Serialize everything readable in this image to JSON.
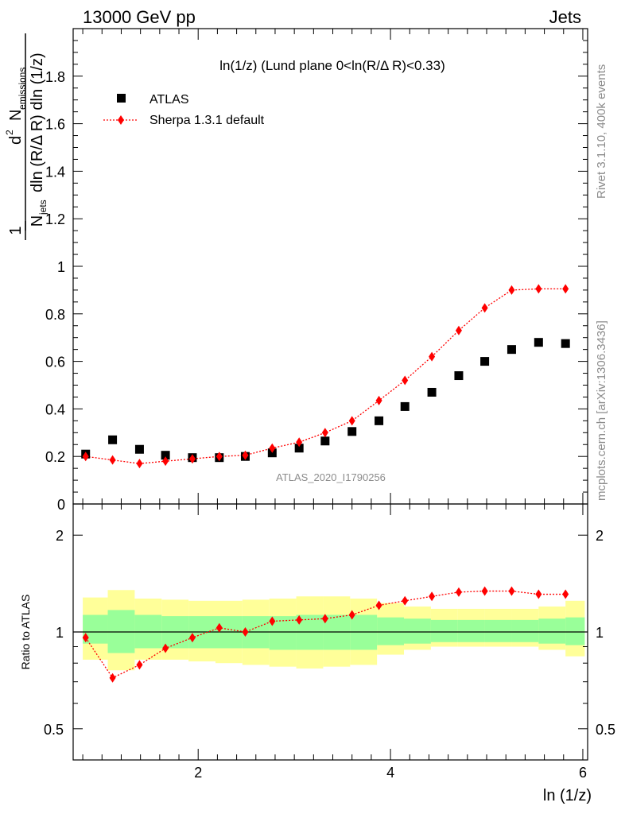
{
  "header": {
    "left": "13000 GeV pp",
    "right": "Jets"
  },
  "side_text": {
    "rivet": "Rivet 3.1.10,  400k events",
    "mcplots": "mcplots.cern.ch [arXiv:1306.3436]"
  },
  "chart_data": [
    {
      "type": "scatter",
      "title": "ln(1/z) (Lund plane 0<ln(R/Δ R)<0.33)",
      "watermark": "ATLAS_2020_I1790256",
      "ylabel": {
        "one": "1",
        "njets": "N",
        "njets_sub": "jets",
        "denom": "dln (R/Δ R) dln (1/z)",
        "d2": "d",
        "d2_sup": "2",
        "nemis": "N",
        "nemis_sub": "emissions"
      },
      "xlim": [
        0.7,
        6.05
      ],
      "ylim": [
        0,
        2.0
      ],
      "yticks": [
        {
          "v": 0,
          "label": "0"
        },
        {
          "v": 0.2,
          "label": "0.2"
        },
        {
          "v": 0.4,
          "label": "0.4"
        },
        {
          "v": 0.6,
          "label": "0.6"
        },
        {
          "v": 0.8,
          "label": "0.8"
        },
        {
          "v": 1.0,
          "label": "1"
        },
        {
          "v": 1.2,
          "label": "1.2"
        },
        {
          "v": 1.4,
          "label": "1.4"
        },
        {
          "v": 1.6,
          "label": "1.6"
        },
        {
          "v": 1.8,
          "label": "1.8"
        }
      ],
      "legend": {
        "position": "top-left",
        "atlas": "ATLAS",
        "sherpa": "Sherpa 1.3.1 default"
      },
      "x": [
        0.83,
        1.11,
        1.39,
        1.66,
        1.94,
        2.22,
        2.49,
        2.77,
        3.05,
        3.32,
        3.6,
        3.88,
        4.15,
        4.43,
        4.71,
        4.98,
        5.26,
        5.54,
        5.82
      ],
      "series": [
        {
          "name": "ATLAS",
          "color": "#000000",
          "values": [
            0.21,
            0.27,
            0.23,
            0.205,
            0.195,
            0.195,
            0.2,
            0.215,
            0.235,
            0.265,
            0.305,
            0.35,
            0.41,
            0.47,
            0.54,
            0.6,
            0.65,
            0.68,
            0.675
          ]
        },
        {
          "name": "Sherpa 1.3.1 default",
          "color": "#ff0000",
          "values": [
            0.2,
            0.185,
            0.17,
            0.18,
            0.19,
            0.2,
            0.205,
            0.235,
            0.26,
            0.3,
            0.35,
            0.435,
            0.52,
            0.62,
            0.73,
            0.825,
            0.9,
            0.905,
            0.905
          ]
        }
      ]
    },
    {
      "type": "scatter",
      "ylabel": "Ratio to ATLAS",
      "xlabel": "ln (1/z)",
      "scale": "log",
      "ylim": [
        0.4,
        2.5
      ],
      "yticks": [
        {
          "v": 0.5,
          "label": "0.5"
        },
        {
          "v": 1,
          "label": "1"
        },
        {
          "v": 2,
          "label": "2"
        }
      ],
      "xticks": [
        {
          "v": 2,
          "label": "2"
        },
        {
          "v": 4,
          "label": "4"
        },
        {
          "v": 6,
          "label": "6"
        }
      ],
      "bin_edges": [
        0.8,
        1.06,
        1.34,
        1.62,
        1.9,
        2.18,
        2.46,
        2.74,
        3.02,
        3.3,
        3.58,
        3.86,
        4.14,
        4.42,
        4.7,
        4.98,
        5.26,
        5.54,
        5.82,
        6.02
      ],
      "band_yellow": [
        [
          0.82,
          1.28
        ],
        [
          0.76,
          1.35
        ],
        [
          0.82,
          1.27
        ],
        [
          0.82,
          1.26
        ],
        [
          0.81,
          1.25
        ],
        [
          0.8,
          1.25
        ],
        [
          0.79,
          1.26
        ],
        [
          0.78,
          1.27
        ],
        [
          0.77,
          1.29
        ],
        [
          0.78,
          1.29
        ],
        [
          0.79,
          1.27
        ],
        [
          0.85,
          1.23
        ],
        [
          0.88,
          1.2
        ],
        [
          0.9,
          1.18
        ],
        [
          0.9,
          1.18
        ],
        [
          0.9,
          1.18
        ],
        [
          0.9,
          1.18
        ],
        [
          0.88,
          1.2
        ],
        [
          0.84,
          1.25
        ]
      ],
      "band_green": [
        [
          0.92,
          1.13
        ],
        [
          0.86,
          1.17
        ],
        [
          0.89,
          1.13
        ],
        [
          0.89,
          1.12
        ],
        [
          0.89,
          1.12
        ],
        [
          0.89,
          1.12
        ],
        [
          0.89,
          1.12
        ],
        [
          0.88,
          1.12
        ],
        [
          0.88,
          1.13
        ],
        [
          0.88,
          1.13
        ],
        [
          0.88,
          1.13
        ],
        [
          0.91,
          1.11
        ],
        [
          0.92,
          1.1
        ],
        [
          0.93,
          1.09
        ],
        [
          0.93,
          1.09
        ],
        [
          0.93,
          1.09
        ],
        [
          0.93,
          1.09
        ],
        [
          0.92,
          1.1
        ],
        [
          0.91,
          1.11
        ]
      ],
      "series": [
        {
          "name": "Sherpa 1.3.1 default",
          "color": "#ff0000",
          "values": [
            0.96,
            0.72,
            0.79,
            0.89,
            0.96,
            1.03,
            1.0,
            1.08,
            1.09,
            1.1,
            1.13,
            1.21,
            1.25,
            1.29,
            1.33,
            1.34,
            1.34,
            1.31,
            1.31
          ]
        }
      ]
    }
  ]
}
